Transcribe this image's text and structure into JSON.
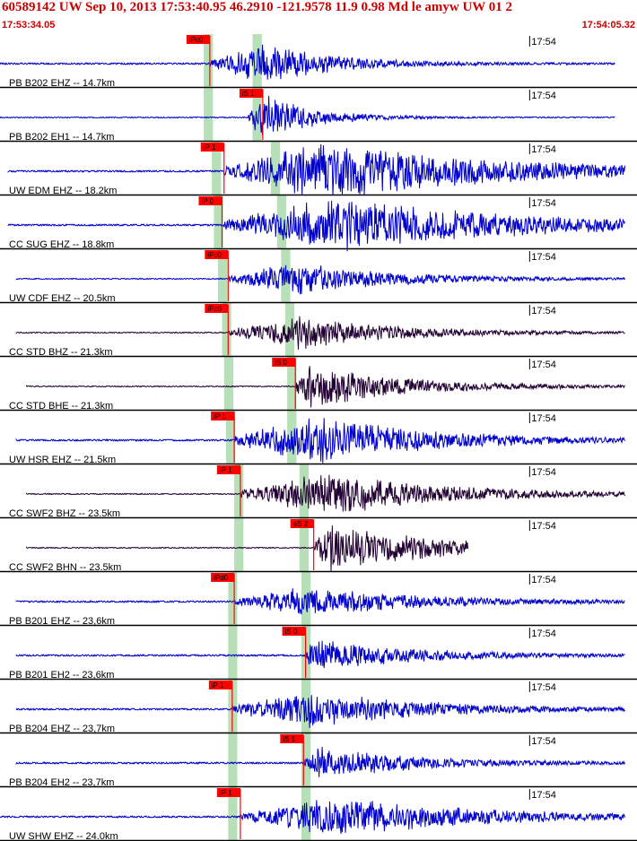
{
  "header": {
    "title": "60589142 UW Sep 10, 2013 17:53:40.95   46.2910 -121.9578 11.9 0.98 Md le amyw UW 01   2",
    "start_time": "17:53:34.05",
    "end_time": "17:54:05.32"
  },
  "colors": {
    "trace_blue": "#0000cc",
    "trace_dark": "#220033",
    "pick_red": "#ff0000",
    "window_green": "#b8e0b8",
    "divider": "#000000"
  },
  "chart_data": {
    "type": "line",
    "title": "60589142 UW Sep 10, 2013 17:53:40.95",
    "x_range": [
      "17:53:34.05",
      "17:54:05.32"
    ],
    "time_tick_label": "17:54",
    "time_tick": 26.0,
    "duration": 31.27,
    "series": [
      {
        "name": "PB B202 EHZ -- 14.7km",
        "color": "blue",
        "trace_start": 0.0,
        "trace_end": 30.2,
        "pick": {
          "label": "iPc0",
          "time": 10.3
        },
        "signal_start": 10.3,
        "peak_time": 13.0,
        "amp": 0.55,
        "decay": 3.5,
        "noise": 0.03
      },
      {
        "name": "PB B202 EH1 -- 14.7km",
        "color": "blue",
        "trace_start": 0.0,
        "trace_end": 30.2,
        "pick": {
          "label": "iS 1",
          "time": 12.9
        },
        "signal_start": 12.2,
        "peak_time": 12.9,
        "amp": 0.65,
        "decay": 2.5,
        "noise": 0.02
      },
      {
        "name": "UW EDM EHZ -- 18.2km",
        "color": "blue",
        "trace_start": 0.4,
        "trace_end": 30.7,
        "pick": {
          "label": "iP 1",
          "time": 11.0
        },
        "signal_start": 11.0,
        "peak_time": 16.0,
        "amp": 0.8,
        "decay": 9.0,
        "noise": 0.03
      },
      {
        "name": "CC SUG EHZ -- 18.8km",
        "color": "blue",
        "trace_start": 0.4,
        "trace_end": 30.7,
        "pick": {
          "label": "iP 0",
          "time": 10.9
        },
        "signal_start": 11.0,
        "peak_time": 16.5,
        "amp": 0.75,
        "decay": 9.0,
        "noise": 0.03
      },
      {
        "name": "UW CDF EHZ -- 20.5km",
        "color": "blue",
        "trace_start": 0.8,
        "trace_end": 30.7,
        "pick": {
          "label": "iPc0",
          "time": 11.2
        },
        "signal_start": 11.2,
        "peak_time": 14.5,
        "amp": 0.45,
        "decay": 5.0,
        "noise": 0.02
      },
      {
        "name": "CC STD BHZ -- 21.3km",
        "color": "dark",
        "trace_start": 0.8,
        "trace_end": 30.7,
        "pick": {
          "label": "iPc0",
          "time": 11.2
        },
        "signal_start": 11.2,
        "peak_time": 14.7,
        "amp": 0.45,
        "decay": 5.0,
        "noise": 0.02
      },
      {
        "name": "CC STD BHE -- 21.3km",
        "color": "dark",
        "trace_start": 1.3,
        "trace_end": 30.7,
        "pick": {
          "label": "iS 0",
          "time": 14.5
        },
        "signal_start": 14.5,
        "peak_time": 15.0,
        "amp": 0.6,
        "decay": 5.0,
        "noise": 0.02
      },
      {
        "name": "UW HSR EHZ -- 21.5km",
        "color": "blue",
        "trace_start": 0.8,
        "trace_end": 30.7,
        "pick": {
          "label": "iP 1",
          "time": 11.5
        },
        "signal_start": 11.5,
        "peak_time": 15.5,
        "amp": 0.65,
        "decay": 6.0,
        "noise": 0.03
      },
      {
        "name": "CC SWF2 BHZ -- 23.5km",
        "color": "dark",
        "trace_start": 1.3,
        "trace_end": 30.7,
        "pick": {
          "label": "iP 1",
          "time": 11.8
        },
        "signal_start": 11.8,
        "peak_time": 16.0,
        "amp": 0.6,
        "decay": 6.0,
        "noise": 0.02
      },
      {
        "name": "CC SWF2 BHN -- 23.5km",
        "color": "dark",
        "trace_start": 1.3,
        "trace_end": 23.0,
        "pick": {
          "label": "eS 2",
          "time": 15.4
        },
        "signal_start": 15.4,
        "peak_time": 16.3,
        "amp": 0.7,
        "decay": 5.0,
        "noise": 0.02
      },
      {
        "name": "PB B201 EHZ -- 23,6km",
        "color": "blue",
        "trace_start": 0.8,
        "trace_end": 30.7,
        "pick": {
          "label": "iPd0",
          "time": 11.5
        },
        "signal_start": 11.5,
        "peak_time": 15.0,
        "amp": 0.4,
        "decay": 6.0,
        "noise": 0.03
      },
      {
        "name": "PB B201 EH2 -- 23,6km",
        "color": "blue",
        "trace_start": 0.8,
        "trace_end": 30.7,
        "pick": {
          "label": "iS 0",
          "time": 15.0
        },
        "signal_start": 15.0,
        "peak_time": 15.3,
        "amp": 0.45,
        "decay": 5.0,
        "noise": 0.03
      },
      {
        "name": "PB B204 EHZ -- 23,7km",
        "color": "blue",
        "trace_start": 0.8,
        "trace_end": 30.7,
        "pick": {
          "label": "iP 1",
          "time": 11.4
        },
        "signal_start": 11.4,
        "peak_time": 15.0,
        "amp": 0.5,
        "decay": 6.0,
        "noise": 0.03
      },
      {
        "name": "PB B204 EH2 -- 23,7km",
        "color": "blue",
        "trace_start": 0.8,
        "trace_end": 30.7,
        "pick": {
          "label": "iS 1",
          "time": 14.9
        },
        "signal_start": 14.9,
        "peak_time": 15.5,
        "amp": 0.45,
        "decay": 5.0,
        "noise": 0.03
      },
      {
        "name": "UW SHW EHZ -- 24.0km",
        "color": "blue",
        "trace_start": 0.0,
        "trace_end": 30.7,
        "pick": {
          "label": "iP 1",
          "time": 11.8
        },
        "signal_start": 11.8,
        "peak_time": 16.5,
        "amp": 0.55,
        "decay": 7.0,
        "noise": 0.03
      }
    ],
    "windows": [
      {
        "start": [
          10.0,
          10.0,
          10.4,
          10.5,
          10.7,
          10.9,
          11.0,
          11.1,
          11.5,
          11.5,
          11.2,
          11.2,
          11.2,
          11.2,
          11.2
        ],
        "width": 0.45
      },
      {
        "start": [
          12.4,
          12.4,
          13.3,
          13.6,
          13.8,
          14.0,
          14.1,
          14.1,
          14.7,
          14.7,
          14.8,
          14.8,
          14.8,
          14.8,
          14.8
        ],
        "width": 0.45
      }
    ]
  }
}
